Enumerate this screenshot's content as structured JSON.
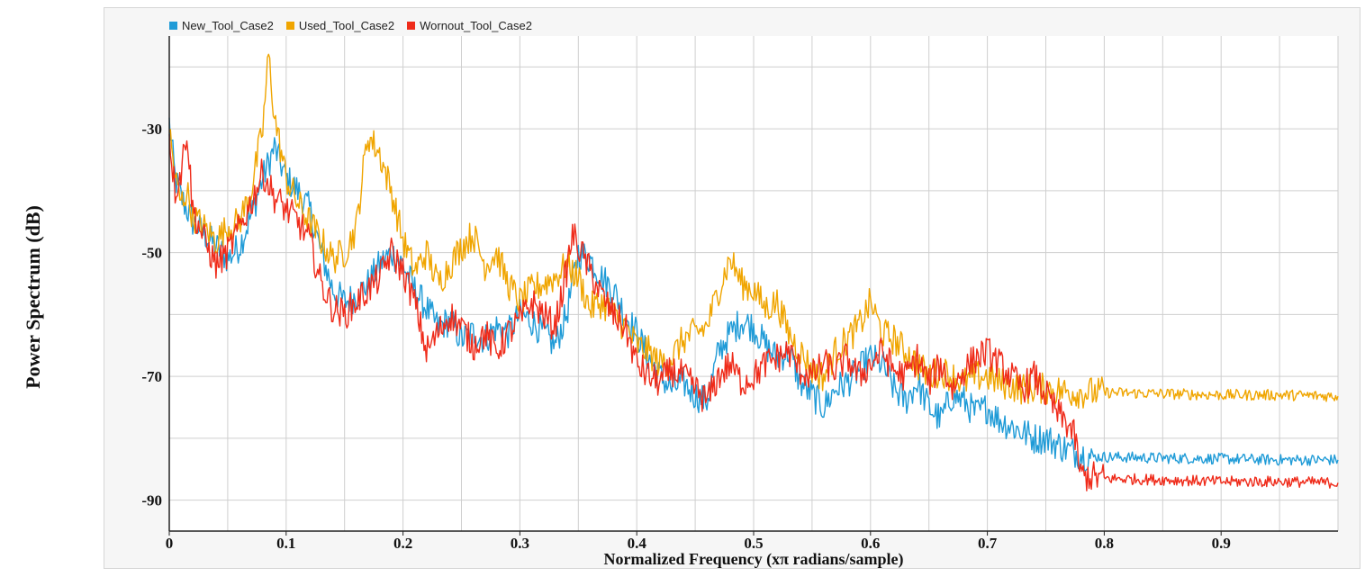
{
  "chart_data": {
    "type": "line",
    "title": "",
    "xlabel": "Normalized Frequency (xπ radians/sample)",
    "ylabel": "Power Spectrum (dB)",
    "xlim": [
      0,
      1
    ],
    "ylim": [
      -95,
      -15
    ],
    "xticks": [
      0,
      0.1,
      0.2,
      0.3,
      0.4,
      0.5,
      0.6,
      0.7,
      0.8,
      0.9
    ],
    "xtick_labels": [
      "0",
      "0.1",
      "0.2",
      "0.3",
      "0.4",
      "0.5",
      "0.6",
      "0.7",
      "0.8",
      "0.9"
    ],
    "yticks": [
      -30,
      -50,
      -70,
      -90
    ],
    "ytick_labels": [
      "-30",
      "-50",
      "-70",
      "-90"
    ],
    "grid": true,
    "legend_position": "top-left",
    "series": [
      {
        "name": "New_Tool_Case2",
        "color": "#1f9bd7",
        "x": [
          0,
          0.005,
          0.01,
          0.015,
          0.02,
          0.03,
          0.04,
          0.05,
          0.06,
          0.07,
          0.08,
          0.09,
          0.1,
          0.11,
          0.12,
          0.13,
          0.14,
          0.15,
          0.16,
          0.17,
          0.18,
          0.19,
          0.2,
          0.21,
          0.22,
          0.23,
          0.24,
          0.25,
          0.26,
          0.27,
          0.28,
          0.29,
          0.3,
          0.31,
          0.32,
          0.33,
          0.34,
          0.35,
          0.36,
          0.37,
          0.38,
          0.39,
          0.4,
          0.41,
          0.42,
          0.43,
          0.44,
          0.45,
          0.46,
          0.47,
          0.48,
          0.49,
          0.5,
          0.51,
          0.52,
          0.53,
          0.54,
          0.55,
          0.56,
          0.57,
          0.58,
          0.59,
          0.6,
          0.61,
          0.62,
          0.63,
          0.64,
          0.65,
          0.66,
          0.67,
          0.68,
          0.69,
          0.7,
          0.71,
          0.72,
          0.73,
          0.74,
          0.75,
          0.76,
          0.77,
          0.78,
          0.79,
          0.8,
          0.85,
          0.9,
          0.95,
          1.0
        ],
        "y": [
          -29,
          -38,
          -41,
          -43,
          -45,
          -47,
          -49,
          -51,
          -49,
          -44,
          -38,
          -33,
          -38,
          -40,
          -43,
          -50,
          -56,
          -58,
          -57,
          -55,
          -52,
          -50,
          -52,
          -56,
          -59,
          -62,
          -61,
          -64,
          -63,
          -64,
          -62,
          -63,
          -60,
          -61,
          -63,
          -65,
          -60,
          -50,
          -51,
          -54,
          -56,
          -60,
          -63,
          -67,
          -70,
          -72,
          -71,
          -73,
          -74,
          -66,
          -63,
          -61,
          -62,
          -65,
          -67,
          -66,
          -71,
          -73,
          -75,
          -72,
          -71,
          -69,
          -67,
          -68,
          -72,
          -74,
          -71,
          -75,
          -77,
          -73,
          -74,
          -76,
          -75,
          -77,
          -78,
          -79,
          -80,
          -80,
          -81,
          -82,
          -82.5,
          -83,
          -83,
          -83.2,
          -83.3,
          -83.5,
          -83.5
        ]
      },
      {
        "name": "Used_Tool_Case2",
        "color": "#f0a500",
        "x": [
          0,
          0.005,
          0.01,
          0.015,
          0.02,
          0.03,
          0.04,
          0.05,
          0.06,
          0.07,
          0.08,
          0.085,
          0.09,
          0.1,
          0.11,
          0.12,
          0.13,
          0.14,
          0.15,
          0.16,
          0.165,
          0.17,
          0.18,
          0.19,
          0.2,
          0.21,
          0.22,
          0.23,
          0.24,
          0.25,
          0.26,
          0.27,
          0.28,
          0.29,
          0.3,
          0.31,
          0.32,
          0.33,
          0.34,
          0.35,
          0.36,
          0.37,
          0.38,
          0.39,
          0.4,
          0.41,
          0.42,
          0.43,
          0.44,
          0.45,
          0.46,
          0.47,
          0.48,
          0.49,
          0.5,
          0.51,
          0.52,
          0.53,
          0.54,
          0.55,
          0.56,
          0.57,
          0.58,
          0.59,
          0.6,
          0.61,
          0.62,
          0.63,
          0.64,
          0.65,
          0.66,
          0.67,
          0.68,
          0.69,
          0.7,
          0.71,
          0.72,
          0.73,
          0.74,
          0.75,
          0.76,
          0.77,
          0.78,
          0.8,
          0.85,
          0.9,
          0.95,
          1.0
        ],
        "y": [
          -30,
          -38,
          -42,
          -40,
          -44,
          -46,
          -48,
          -46,
          -45,
          -40,
          -30,
          -18,
          -28,
          -38,
          -42,
          -45,
          -48,
          -51,
          -50,
          -46,
          -38,
          -31,
          -34,
          -40,
          -48,
          -53,
          -50,
          -55,
          -52,
          -49,
          -47,
          -52,
          -50,
          -55,
          -58,
          -56,
          -55,
          -54,
          -52,
          -54,
          -59,
          -58,
          -60,
          -62,
          -65,
          -66,
          -68,
          -67,
          -64,
          -63,
          -62,
          -56,
          -51,
          -55,
          -56,
          -59,
          -58,
          -63,
          -66,
          -69,
          -70,
          -66,
          -64,
          -62,
          -58,
          -63,
          -64,
          -66,
          -68,
          -70,
          -69,
          -70,
          -71,
          -70,
          -70,
          -71,
          -71.5,
          -72,
          -72,
          -72,
          -72.3,
          -72.5,
          -72.6,
          -72.6,
          -72.8,
          -73,
          -73,
          -73.2
        ]
      },
      {
        "name": "Wornout_Tool_Case2",
        "color": "#ef2b1a",
        "x": [
          0,
          0.005,
          0.01,
          0.015,
          0.02,
          0.03,
          0.04,
          0.05,
          0.06,
          0.07,
          0.08,
          0.09,
          0.1,
          0.11,
          0.12,
          0.13,
          0.14,
          0.15,
          0.16,
          0.17,
          0.18,
          0.19,
          0.2,
          0.21,
          0.22,
          0.23,
          0.24,
          0.25,
          0.26,
          0.27,
          0.28,
          0.29,
          0.3,
          0.31,
          0.32,
          0.33,
          0.34,
          0.345,
          0.35,
          0.36,
          0.37,
          0.38,
          0.39,
          0.4,
          0.41,
          0.42,
          0.43,
          0.44,
          0.45,
          0.46,
          0.47,
          0.48,
          0.49,
          0.5,
          0.51,
          0.52,
          0.53,
          0.54,
          0.55,
          0.56,
          0.57,
          0.58,
          0.59,
          0.6,
          0.61,
          0.62,
          0.63,
          0.64,
          0.65,
          0.66,
          0.67,
          0.68,
          0.69,
          0.7,
          0.71,
          0.72,
          0.73,
          0.74,
          0.75,
          0.76,
          0.77,
          0.775,
          0.78,
          0.8,
          0.85,
          0.9,
          0.95,
          1.0
        ],
        "y": [
          -31,
          -40,
          -37,
          -30,
          -43,
          -48,
          -52,
          -50,
          -46,
          -42,
          -37,
          -41,
          -43,
          -45,
          -48,
          -55,
          -59,
          -60,
          -58,
          -56,
          -54,
          -50,
          -53,
          -58,
          -66,
          -63,
          -60,
          -62,
          -65,
          -63,
          -66,
          -63,
          -61,
          -58,
          -60,
          -62,
          -53,
          -47,
          -49,
          -53,
          -57,
          -60,
          -62,
          -68,
          -70,
          -71,
          -69,
          -70,
          -72,
          -74,
          -70,
          -68,
          -71,
          -70,
          -68,
          -67,
          -66,
          -69,
          -70,
          -68,
          -69,
          -67,
          -70,
          -68,
          -66,
          -69,
          -70,
          -67,
          -71,
          -68,
          -72,
          -69,
          -67,
          -66,
          -68,
          -70,
          -72,
          -70,
          -73,
          -76,
          -78,
          -80,
          -86,
          -86.5,
          -86.7,
          -87,
          -87,
          -87.2
        ]
      }
    ]
  }
}
